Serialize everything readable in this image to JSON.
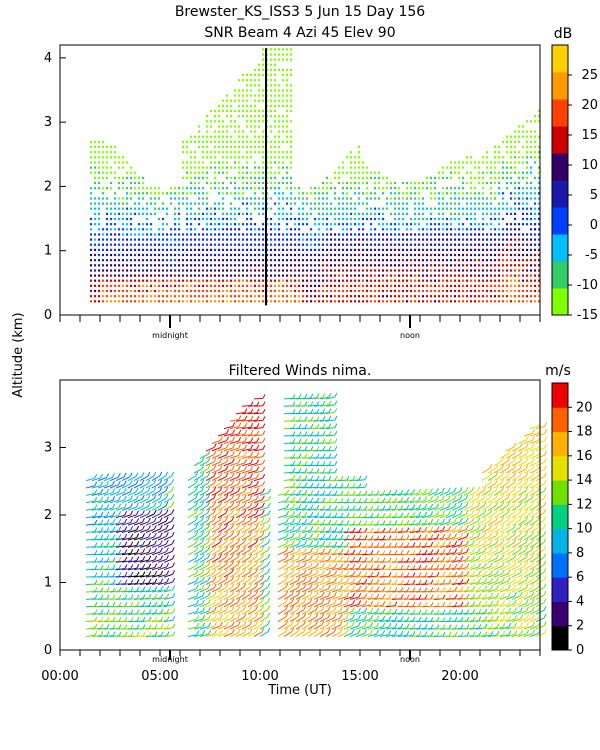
{
  "chart_data": [
    {
      "type": "heatmap",
      "title": "Brewster_KS_ISS3   5 Jun 15 Day 156",
      "subtitle": "SNR Beam 4 Azi  45 Elev 90",
      "ylabel": "Altitude (km)",
      "ylim": [
        0,
        4.2
      ],
      "yticks": [
        "0",
        "1",
        "2",
        "3",
        "4"
      ],
      "xlim": [
        0,
        24
      ],
      "x_markers": [
        "midnight",
        "noon"
      ],
      "colorbar": {
        "unit": "dB",
        "ticks": [
          "-15",
          "-10",
          "-5",
          "0",
          "5",
          "10",
          "15",
          "20",
          "25"
        ],
        "range": [
          -15,
          30
        ],
        "colors": [
          "#7fff00",
          "#33cc66",
          "#00bfff",
          "#0040ff",
          "#1a1aa6",
          "#330066",
          "#cc0000",
          "#ff4000",
          "#ff9900",
          "#ffd000"
        ]
      }
    },
    {
      "type": "scatter",
      "title": "Filtered Winds nima.",
      "xlabel": "Time (UT)",
      "ylabel": "Altitude (km)",
      "ylim": [
        0,
        4
      ],
      "yticks": [
        "0",
        "1",
        "2",
        "3"
      ],
      "xlim": [
        0,
        24
      ],
      "xticks": [
        "00:00",
        "05:00",
        "10:00",
        "15:00",
        "20:00"
      ],
      "x_markers": [
        "midnight",
        "noon"
      ],
      "colorbar": {
        "unit": "m/s",
        "ticks": [
          "0",
          "2",
          "4",
          "6",
          "8",
          "10",
          "12",
          "14",
          "16",
          "18",
          "20"
        ],
        "range": [
          0,
          22
        ],
        "colors": [
          "#000000",
          "#3a0070",
          "#3020c0",
          "#0070ff",
          "#00b4e6",
          "#00d080",
          "#70e000",
          "#e8e000",
          "#ffb000",
          "#ff6000",
          "#ee0000"
        ]
      }
    }
  ]
}
